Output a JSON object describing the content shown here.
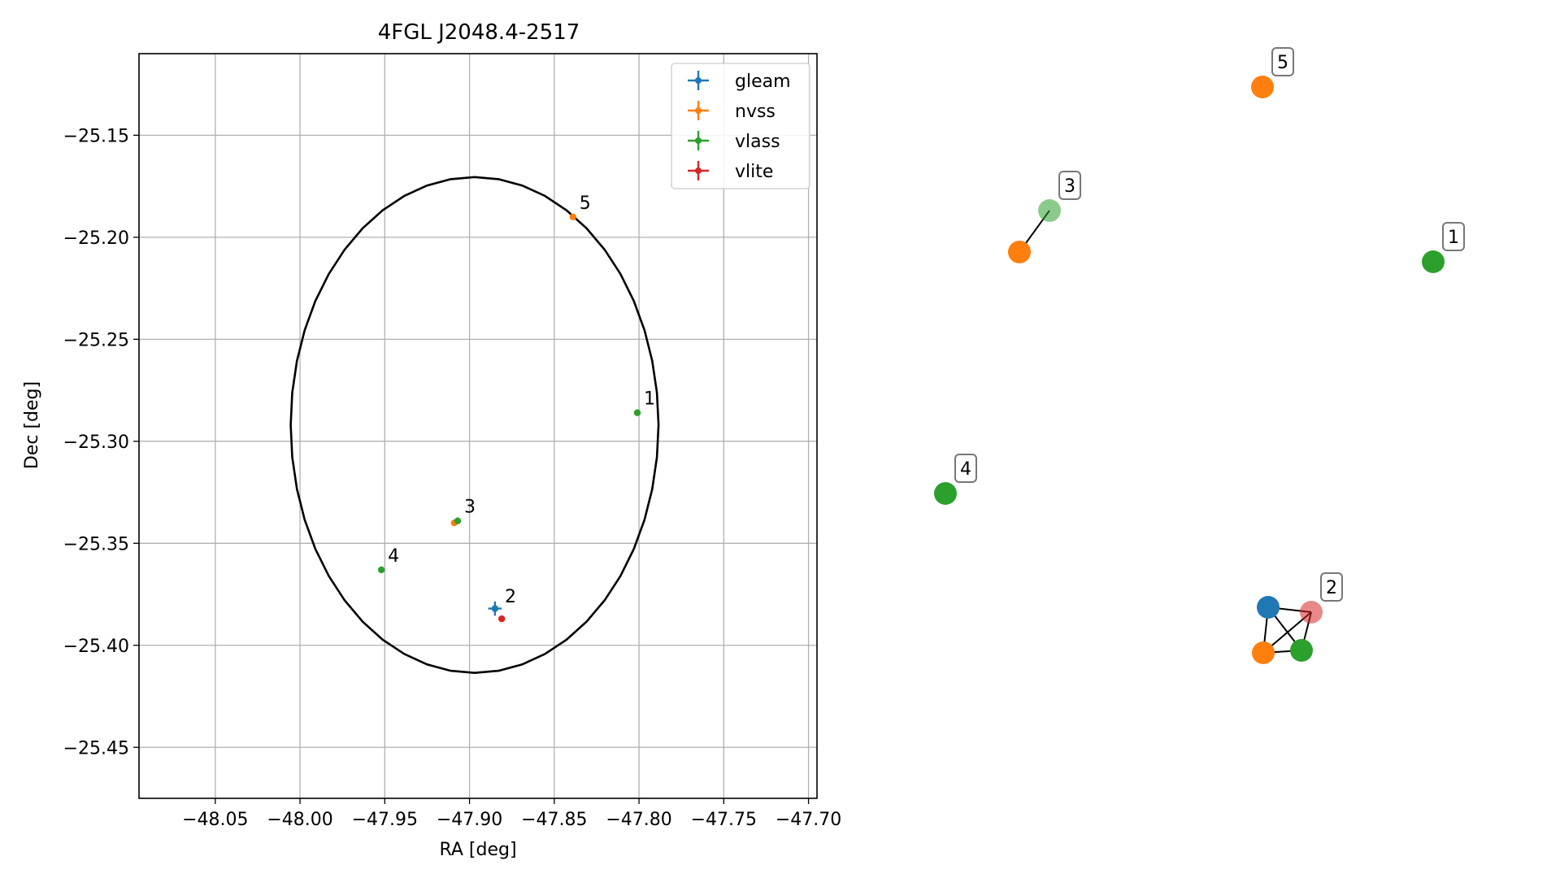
{
  "chart_data": [
    {
      "type": "scatter",
      "title": "4FGL J2048.4-2517",
      "xlabel": "RA [deg]",
      "ylabel": "Dec [deg]",
      "xlim": [
        -48.095,
        -47.695
      ],
      "ylim": [
        -25.475,
        -25.11
      ],
      "grid": true,
      "legend_position": "top-right",
      "x_ticks": [
        -48.05,
        -48.0,
        -47.95,
        -47.9,
        -47.85,
        -47.8,
        -47.75,
        -47.7
      ],
      "x_tick_labels": [
        "−48.05",
        "−48.00",
        "−47.95",
        "−47.90",
        "−47.85",
        "−47.80",
        "−47.75",
        "−47.70"
      ],
      "y_ticks": [
        -25.15,
        -25.2,
        -25.25,
        -25.3,
        -25.35,
        -25.4,
        -25.45
      ],
      "y_tick_labels": [
        "−25.15",
        "−25.20",
        "−25.25",
        "−25.30",
        "−25.35",
        "−25.40",
        "−25.45"
      ],
      "ellipse": {
        "center": [
          -47.897,
          -25.292
        ],
        "semi_axis_ra": 0.1085,
        "semi_axis_dec": 0.1215
      },
      "series": [
        {
          "name": "gleam",
          "color": "#1f77b4",
          "points": [
            {
              "x": -47.885,
              "y": -25.382,
              "xerr": 0.004,
              "yerr": 0.0035
            }
          ]
        },
        {
          "name": "nvss",
          "color": "#ff7f0e",
          "points": [
            {
              "x": -47.839,
              "y": -25.19
            },
            {
              "x": -47.909,
              "y": -25.34
            }
          ]
        },
        {
          "name": "vlass",
          "color": "#2ca02c",
          "points": [
            {
              "x": -47.801,
              "y": -25.286
            },
            {
              "x": -47.907,
              "y": -25.339
            },
            {
              "x": -47.952,
              "y": -25.363
            }
          ]
        },
        {
          "name": "vlite",
          "color": "#d62728",
          "points": [
            {
              "x": -47.881,
              "y": -25.387
            }
          ]
        }
      ],
      "annotations": [
        {
          "text": "1",
          "x": -47.801,
          "y": -25.286
        },
        {
          "text": "2",
          "x": -47.883,
          "y": -25.383
        },
        {
          "text": "3",
          "x": -47.907,
          "y": -25.339
        },
        {
          "text": "4",
          "x": -47.952,
          "y": -25.363
        },
        {
          "text": "5",
          "x": -47.839,
          "y": -25.19
        }
      ]
    },
    {
      "type": "network",
      "nodes": [
        {
          "id": "5a",
          "color": "#ff7f0e",
          "label": "5"
        },
        {
          "id": "3a",
          "color": "#ff7f0e",
          "label": ""
        },
        {
          "id": "3b",
          "color": "#2ca02c",
          "label": "3",
          "alpha": 0.55
        },
        {
          "id": "1a",
          "color": "#2ca02c",
          "label": "1"
        },
        {
          "id": "4a",
          "color": "#2ca02c",
          "label": "4"
        },
        {
          "id": "2a",
          "color": "#1f77b4",
          "label": ""
        },
        {
          "id": "2b",
          "color": "#d62728",
          "label": "2",
          "alpha": 0.55
        },
        {
          "id": "2c",
          "color": "#ff7f0e",
          "label": ""
        },
        {
          "id": "2d",
          "color": "#2ca02c",
          "label": ""
        }
      ],
      "edges": [
        [
          "3a",
          "3b"
        ],
        [
          "2a",
          "2b"
        ],
        [
          "2a",
          "2c"
        ],
        [
          "2a",
          "2d"
        ],
        [
          "2b",
          "2c"
        ],
        [
          "2b",
          "2d"
        ],
        [
          "2c",
          "2d"
        ]
      ]
    }
  ]
}
